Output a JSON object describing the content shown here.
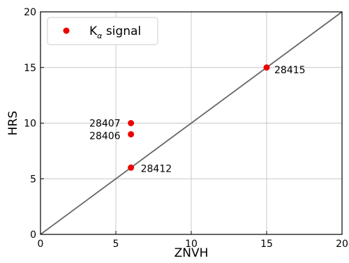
{
  "chart_data": {
    "type": "scatter",
    "title": "",
    "xlabel": "ZNVH",
    "ylabel": "HRS",
    "xlim": [
      0,
      20
    ],
    "ylim": [
      0,
      20
    ],
    "xticks": [
      "0",
      "5",
      "10",
      "15",
      "20"
    ],
    "yticks": [
      "0",
      "5",
      "10",
      "15",
      "20"
    ],
    "grid": true,
    "legend_position": "top-left",
    "diagonal_line": {
      "x": [
        0,
        20
      ],
      "y": [
        0,
        20
      ],
      "color": "#666666"
    },
    "series": [
      {
        "name": "K",
        "name_subscript": "α",
        "name_suffix": " signal",
        "color": "#ee0000",
        "points": [
          {
            "x": 15,
            "y": 15,
            "label": "28415"
          },
          {
            "x": 6,
            "y": 10,
            "label": "28407"
          },
          {
            "x": 6,
            "y": 9,
            "label": "28406"
          },
          {
            "x": 6,
            "y": 6,
            "label": "28412"
          }
        ]
      }
    ]
  }
}
